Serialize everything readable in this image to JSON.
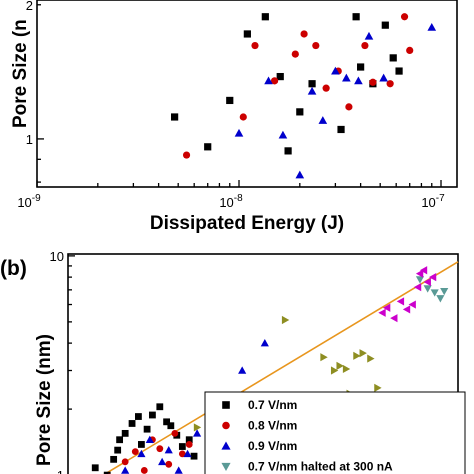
{
  "chart_data": [
    {
      "panel_label": "",
      "type": "scatter",
      "xlabel": "Dissipated Energy (J)",
      "ylabel": "Pore Size (n",
      "xscale": "log",
      "yscale": "log",
      "xlim": [
        1e-09,
        1.2e-07
      ],
      "ylim": [
        0.78,
        2.05
      ],
      "x_ticks": [
        {
          "value": 1e-09,
          "base": "10",
          "exp": "-9"
        },
        {
          "value": 1e-08,
          "base": "10",
          "exp": "-8"
        },
        {
          "value": 1e-07,
          "base": "10",
          "exp": "-7"
        }
      ],
      "y_ticks": [
        {
          "value": 1,
          "label": "1"
        },
        {
          "value": 2,
          "label": "2"
        }
      ],
      "series": [
        {
          "marker": "square",
          "color": "#000000",
          "x": [
            4.8e-09,
            7e-09,
            9e-09,
            1.1e-08,
            1.35e-08,
            1.6e-08,
            1.75e-08,
            2e-08,
            2.3e-08,
            3.2e-08,
            3.8e-08,
            4e-08,
            4.6e-08,
            5.3e-08,
            5.8e-08,
            6.2e-08
          ],
          "y": [
            1.12,
            0.96,
            1.22,
            1.72,
            1.88,
            1.38,
            0.94,
            1.15,
            1.33,
            1.05,
            1.88,
            1.45,
            1.33,
            1.8,
            1.52,
            1.42
          ]
        },
        {
          "marker": "circle",
          "color": "#cc0000",
          "x": [
            5.5e-09,
            1.05e-08,
            1.2e-08,
            1.5e-08,
            1.9e-08,
            2.1e-08,
            2.4e-08,
            2.7e-08,
            3.1e-08,
            3.5e-08,
            4.2e-08,
            4.6e-08,
            5.6e-08,
            6.6e-08,
            7e-08
          ],
          "y": [
            0.92,
            1.12,
            1.62,
            1.35,
            1.55,
            1.72,
            1.62,
            1.3,
            1.42,
            1.18,
            1.62,
            1.34,
            1.33,
            1.88,
            1.58
          ]
        },
        {
          "marker": "triangle-up",
          "color": "#0000cc",
          "x": [
            1e-08,
            1.4e-08,
            1.65e-08,
            2e-08,
            2.3e-08,
            2.6e-08,
            3e-08,
            3.4e-08,
            3.9e-08,
            4.4e-08,
            5.2e-08,
            9e-08
          ],
          "y": [
            1.03,
            1.35,
            1.02,
            0.83,
            1.28,
            1.1,
            1.42,
            1.37,
            1.35,
            1.7,
            1.37,
            1.78
          ]
        }
      ]
    },
    {
      "panel_label": "(b)",
      "type": "scatter",
      "xlabel": "",
      "ylabel": "Pore Size (nm)",
      "xscale": "log",
      "yscale": "log",
      "xlim": [
        1.15e-09,
        1.3e-07
      ],
      "ylim": [
        0.82,
        10.2
      ],
      "x_ticks": [],
      "y_ticks": [
        {
          "value": 1,
          "label": "1"
        },
        {
          "value": 10,
          "label": "10"
        }
      ],
      "fit_line": {
        "x": [
          1.5e-09,
          1.3e-07
        ],
        "y": [
          0.92,
          9.4
        ],
        "color": "#e8961e"
      },
      "series": [
        {
          "name": "0.7 V/nm",
          "marker": "square",
          "color": "#000000",
          "x": [
            1.6e-09,
            1.85e-09,
            2e-09,
            2.1e-09,
            2.15e-09,
            2.3e-09,
            2.5e-09,
            2.7e-09,
            2.8e-09,
            3e-09,
            3.2e-09,
            3.5e-09,
            3.8e-09,
            4e-09,
            4.3e-09,
            4.6e-09,
            5e-09,
            5.3e-09
          ],
          "y": [
            1.08,
            1.0,
            1.18,
            1.3,
            1.45,
            1.55,
            1.72,
            1.85,
            1.38,
            1.62,
            1.88,
            2.05,
            1.75,
            1.68,
            1.52,
            1.35,
            1.45,
            1.22
          ]
        },
        {
          "name": "0.8 V/nm",
          "marker": "circle",
          "color": "#cc0000",
          "x": [
            1.9e-09,
            2.3e-09,
            2.6e-09,
            2.9e-09,
            3.2e-09,
            3.5e-09,
            3.9e-09,
            4.2e-09,
            4.6e-09,
            5e-09
          ],
          "y": [
            0.98,
            1.15,
            1.28,
            1.05,
            1.45,
            1.32,
            1.12,
            1.55,
            1.25,
            1.38
          ]
        },
        {
          "name": "0.9 V/nm",
          "marker": "triangle-up",
          "color": "#0000cc",
          "x": [
            2.3e-09,
            2.8e-09,
            3.1e-09,
            3.6e-09,
            3.9e-09,
            4.4e-09,
            4.9e-09,
            5.5e-09,
            6.5e-09,
            7.5e-09,
            9.5e-09,
            1.25e-08
          ],
          "y": [
            1.05,
            1.25,
            1.45,
            1.15,
            1.3,
            1.05,
            1.25,
            1.55,
            1.4,
            1.65,
            3.0,
            4.0
          ]
        },
        {
          "name": "0.7 V/nm halted at 300 nA",
          "marker": "triangle-down",
          "color": "#5a9a96",
          "x": [
            8.2e-08,
            9e-08,
            9.8e-08,
            1.05e-07,
            1.1e-07
          ],
          "y": [
            7.8,
            7.1,
            6.8,
            6.4,
            6.9
          ]
        },
        {
          "marker": "triangle-right",
          "color": "#8e8e22",
          "x": [
            5.5e-09,
            1.6e-08,
            2.4e-08,
            2.55e-08,
            2.9e-08,
            3.1e-08,
            3.35e-08,
            3.5e-08,
            3.8e-08,
            4.1e-08,
            4.5e-08,
            4.9e-08
          ],
          "y": [
            1.65,
            5.1,
            2.3,
            3.45,
            3.0,
            3.15,
            3.05,
            2.35,
            3.5,
            3.6,
            3.4,
            2.5
          ]
        },
        {
          "marker": "triangle-left",
          "color": "#cc00cc",
          "x": [
            5.2e-08,
            5.5e-08,
            6e-08,
            6.5e-08,
            7e-08,
            7.5e-08,
            8e-08,
            8.2e-08,
            8.6e-08,
            9e-08,
            9.6e-08
          ],
          "y": [
            5.5,
            5.8,
            5.2,
            6.2,
            5.7,
            6.0,
            7.2,
            8.3,
            8.6,
            7.6,
            8.0
          ]
        }
      ]
    }
  ]
}
